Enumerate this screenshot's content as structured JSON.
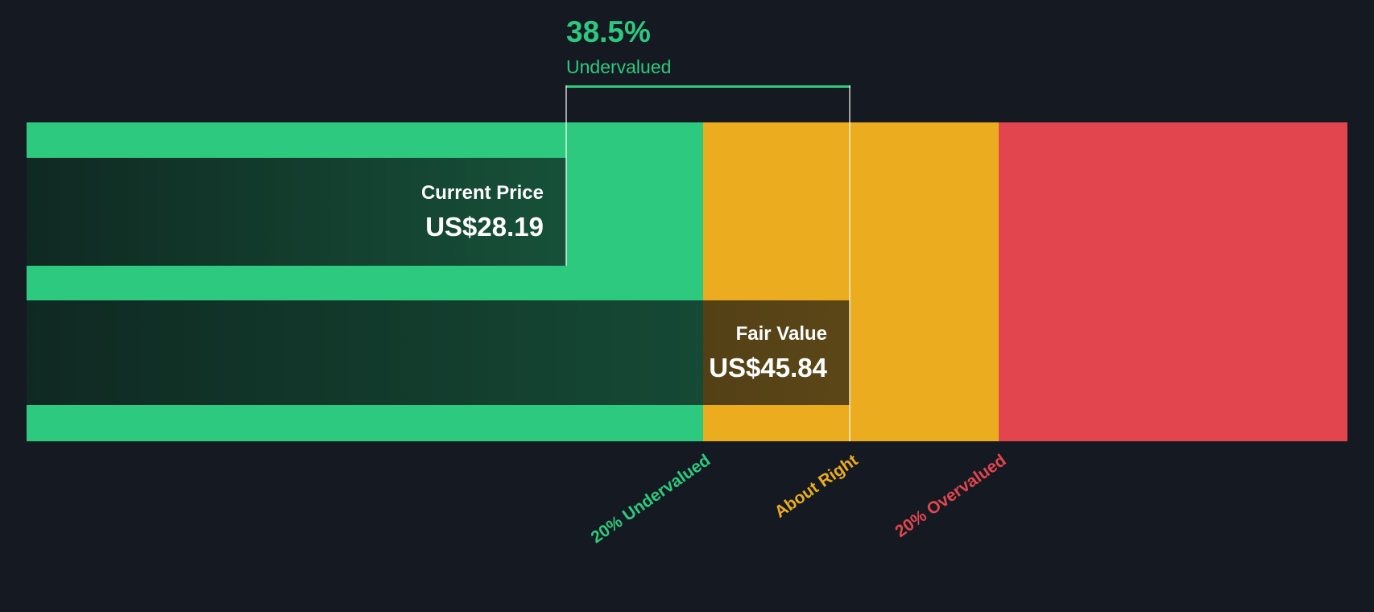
{
  "colors": {
    "bg": "#151a22",
    "green": "#2dc97e",
    "amber": "#ebac1f",
    "red": "#e2454e"
  },
  "annotation": {
    "percent": "38.5%",
    "label": "Undervalued"
  },
  "current_price": {
    "label": "Current Price",
    "value": "US$28.19"
  },
  "fair_value": {
    "label": "Fair Value",
    "value": "US$45.84"
  },
  "axis": {
    "undervalued": "20% Undervalued",
    "about_right": "About Right",
    "overvalued": "20% Overvalued"
  },
  "chart_data": {
    "type": "bar",
    "title": "",
    "series": [
      {
        "name": "Current Price",
        "value": 28.19
      },
      {
        "name": "Fair Value",
        "value": 45.84
      }
    ],
    "currency": "US$",
    "annotation": {
      "value": 38.5,
      "unit": "%",
      "label": "Undervalued"
    },
    "zones": [
      {
        "label": "20% Undervalued",
        "color": "#2dc97e"
      },
      {
        "label": "About Right",
        "color": "#ebac1f"
      },
      {
        "label": "20% Overvalued",
        "color": "#e2454e"
      }
    ],
    "legend_position": "none",
    "grid": false
  }
}
